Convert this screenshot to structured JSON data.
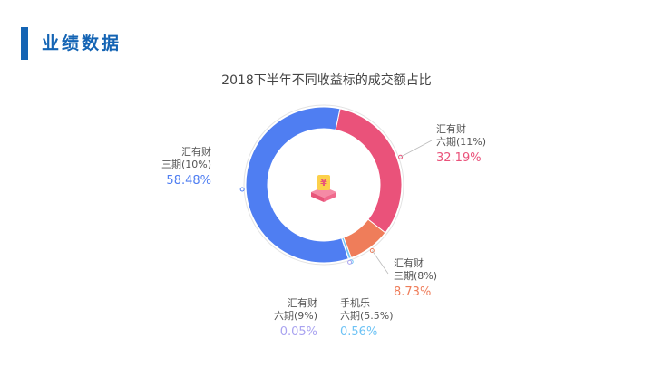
{
  "header": {
    "title": "业绩数据"
  },
  "chart_data": {
    "type": "donut",
    "title": "2018下半年不同收益标的成交额占比",
    "center_icon": "money-box-icon",
    "slices": [
      {
        "line1": "汇有财",
        "line2": "六期(11%)",
        "value": 32.19,
        "value_label": "32.19%",
        "color": "#ea527a"
      },
      {
        "line1": "汇有财",
        "line2": "三期(8%)",
        "value": 8.73,
        "value_label": "8.73%",
        "color": "#ef7d5a"
      },
      {
        "line1": "手机乐",
        "line2": "六期(5.5%)",
        "value": 0.56,
        "value_label": "0.56%",
        "color": "#6ec3f5"
      },
      {
        "line1": "汇有财",
        "line2": "六期(9%)",
        "value": 0.05,
        "value_label": "0.05%",
        "color": "#a9a3f0"
      },
      {
        "line1": "汇有财",
        "line2": "三期(10%)",
        "value": 58.48,
        "value_label": "58.48%",
        "color": "#4f7ef2"
      }
    ]
  }
}
